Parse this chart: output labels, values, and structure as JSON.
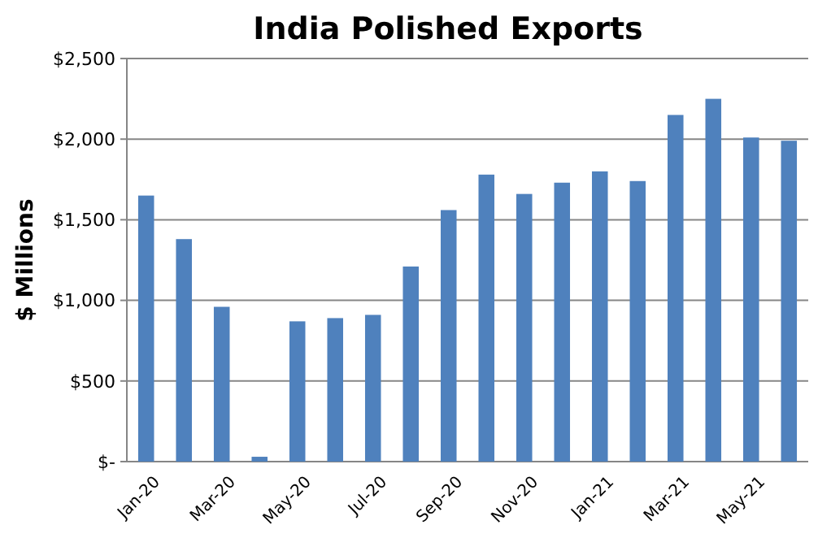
{
  "chart_data": {
    "type": "bar",
    "title": "India Polished Exports",
    "ylabel": "$ Millions",
    "categories": [
      "Jan-20",
      null,
      "Mar-20",
      null,
      "May-20",
      null,
      "Jul-20",
      null,
      "Sep-20",
      null,
      "Nov-20",
      null,
      "Jan-21",
      null,
      "Mar-21",
      null,
      "May-21",
      null
    ],
    "values": [
      1650,
      1380,
      960,
      30,
      870,
      890,
      910,
      1210,
      1560,
      1780,
      1660,
      1730,
      1800,
      1740,
      2150,
      2250,
      2010,
      1990
    ],
    "color": "#4f81bd",
    "ylim": [
      0,
      2500
    ],
    "yticks": [
      {
        "value": 0,
        "label": "$-"
      },
      {
        "value": 500,
        "label": "$500"
      },
      {
        "value": 1000,
        "label": "$1,000"
      },
      {
        "value": 1500,
        "label": "$1,500"
      },
      {
        "value": 2000,
        "label": "$2,000"
      },
      {
        "value": 2500,
        "label": "$2,500"
      }
    ],
    "grid": "y"
  }
}
